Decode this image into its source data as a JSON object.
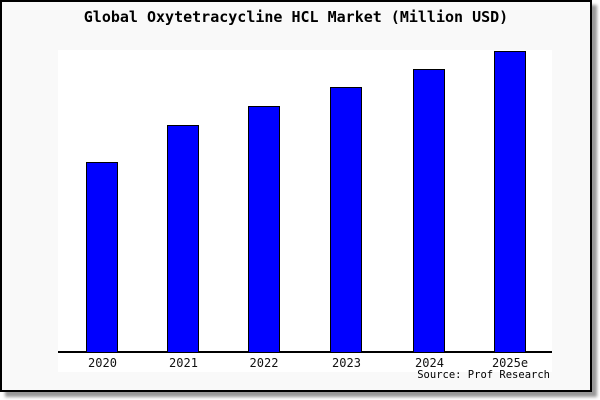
{
  "title": "Global Oxytetracycline HCL Market (Million USD)",
  "source_credit": "Source: Prof Research",
  "colors": {
    "bar_fill": "#0000ff",
    "bar_border": "#000000",
    "panel_background": "#f9f9f9",
    "plot_background": "#ffffff",
    "axis_line": "#000000",
    "frame_border": "#000000",
    "text": "#000000"
  },
  "chart_data": {
    "type": "bar",
    "title": "Global Oxytetracycline HCL Market (Million USD)",
    "categories": [
      "2020",
      "2021",
      "2022",
      "2023",
      "2024",
      "2025e"
    ],
    "values": [
      63,
      75.3,
      81.7,
      88,
      94,
      100
    ],
    "values_note": "relative heights, max bar (2025e) = 100; y-axis not drawn in chart",
    "xlabel": "",
    "ylabel": "",
    "ylim": [
      0,
      100
    ],
    "grid": false,
    "legend": false,
    "y_axis_visible": false,
    "annotations": [
      "Source: Prof Research"
    ]
  }
}
